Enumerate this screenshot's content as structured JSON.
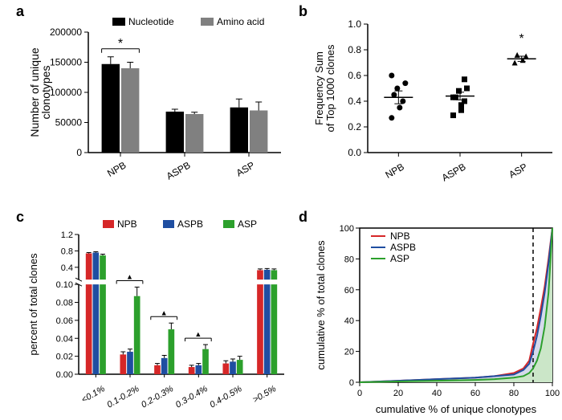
{
  "panel_labels": {
    "a": "a",
    "b": "b",
    "c": "c",
    "d": "d"
  },
  "panel_a": {
    "type": "bar",
    "categories": [
      "NPB",
      "ASPB",
      "ASP"
    ],
    "series": [
      {
        "name": "Nucleotide",
        "color": "#000000",
        "values": [
          147000,
          68000,
          75000
        ],
        "errors": [
          12000,
          4000,
          14000
        ]
      },
      {
        "name": "Amino acid",
        "color": "#808080",
        "values": [
          140000,
          64000,
          70000
        ],
        "errors": [
          10000,
          3000,
          14000
        ]
      }
    ],
    "y": {
      "label": "Number of unique\nclonotypes",
      "lim": [
        0,
        200000
      ],
      "step": 50000
    },
    "sig": {
      "label": "*",
      "group": 0
    },
    "legend_labels": [
      "Nucleotide",
      "Amino acid"
    ],
    "axis_color": "#000000",
    "tick_color": "#000000",
    "font_size_axis": 12,
    "bar_gap": 0.05
  },
  "panel_b": {
    "type": "scatter",
    "categories": [
      "NPB",
      "ASPB",
      "ASP"
    ],
    "y": {
      "label": "Frequency Sum\nof Top 1000 clones",
      "lim": [
        0,
        1.0
      ],
      "step": 0.2
    },
    "means": [
      0.43,
      0.44,
      0.73
    ],
    "sem": [
      0.05,
      0.03,
      0.02
    ],
    "points": {
      "NPB": [
        0.27,
        0.35,
        0.4,
        0.45,
        0.5,
        0.54,
        0.6
      ],
      "ASPB": [
        0.29,
        0.33,
        0.4,
        0.43,
        0.48,
        0.5,
        0.43,
        0.37,
        0.57
      ],
      "ASP": [
        0.7,
        0.72,
        0.75,
        0.76
      ]
    },
    "markers": {
      "NPB": "circle",
      "ASPB": "square",
      "ASP": "triangle"
    },
    "marker_color": "#000000",
    "sig": {
      "label": "*",
      "group": 2
    },
    "axis_color": "#000000",
    "font_size_axis": 12
  },
  "panel_c": {
    "type": "bar_broken_axis",
    "categories_x": [
      "<0.1%",
      "0.1-0.2%",
      "0.2-0.3%",
      "0.3-0.4%",
      "0.4-0.5%",
      ">0.5%"
    ],
    "series": [
      {
        "name": "NPB",
        "color": "#d62728",
        "values": [
          0.74,
          0.022,
          0.01,
          0.008,
          0.012,
          0.33
        ],
        "errors": [
          0.02,
          0.003,
          0.002,
          0.002,
          0.003,
          0.03
        ]
      },
      {
        "name": "ASPB",
        "color": "#1f4ea1",
        "values": [
          0.76,
          0.025,
          0.018,
          0.01,
          0.014,
          0.34
        ],
        "errors": [
          0.02,
          0.003,
          0.003,
          0.002,
          0.003,
          0.03
        ]
      },
      {
        "name": "ASP",
        "color": "#2ca02c",
        "values": [
          0.69,
          0.087,
          0.05,
          0.028,
          0.016,
          0.33
        ],
        "errors": [
          0.03,
          0.01,
          0.007,
          0.005,
          0.004,
          0.03
        ]
      }
    ],
    "y_lower": {
      "lim": [
        0.0,
        0.1
      ],
      "step": 0.02
    },
    "y_upper": {
      "lim": [
        0.1,
        1.2
      ],
      "ticks": [
        0.4,
        0.8,
        1.2
      ]
    },
    "y_label": "percent of total clones",
    "sig_groups": [
      1,
      2,
      3
    ],
    "sig_marker": "▲",
    "legend_labels": [
      "NPB",
      "ASPB",
      "ASP"
    ],
    "axis_color": "#000000",
    "font_size_axis": 12
  },
  "panel_d": {
    "type": "cumulative_area",
    "x": {
      "label": "cumulative % of unique clonotypes",
      "lim": [
        0,
        100
      ],
      "step": 20
    },
    "y": {
      "label": "cumulative % of total clones",
      "lim": [
        0,
        100
      ],
      "step": 20
    },
    "vline": 90,
    "series": [
      {
        "name": "NPB",
        "line_color": "#d62728",
        "fill_color": "#f2d0cf",
        "points": [
          [
            0,
            0
          ],
          [
            20,
            1
          ],
          [
            40,
            2
          ],
          [
            60,
            3
          ],
          [
            70,
            4
          ],
          [
            80,
            6
          ],
          [
            85,
            9
          ],
          [
            88,
            14
          ],
          [
            90,
            25
          ],
          [
            92,
            35
          ],
          [
            94,
            48
          ],
          [
            96,
            62
          ],
          [
            98,
            80
          ],
          [
            100,
            100
          ]
        ]
      },
      {
        "name": "ASPB",
        "line_color": "#1f4ea1",
        "fill_color": "#cfd9ef",
        "points": [
          [
            0,
            0
          ],
          [
            20,
            1
          ],
          [
            40,
            2
          ],
          [
            60,
            3
          ],
          [
            70,
            4
          ],
          [
            80,
            5
          ],
          [
            85,
            8
          ],
          [
            88,
            12
          ],
          [
            90,
            20
          ],
          [
            92,
            30
          ],
          [
            94,
            43
          ],
          [
            96,
            58
          ],
          [
            98,
            77
          ],
          [
            100,
            100
          ]
        ]
      },
      {
        "name": "ASP",
        "line_color": "#2ca02c",
        "fill_color": "#c9e8c2",
        "points": [
          [
            0,
            0
          ],
          [
            20,
            0.5
          ],
          [
            40,
            1
          ],
          [
            60,
            1.5
          ],
          [
            70,
            2
          ],
          [
            80,
            3
          ],
          [
            85,
            4
          ],
          [
            88,
            6
          ],
          [
            90,
            9
          ],
          [
            92,
            14
          ],
          [
            94,
            22
          ],
          [
            96,
            36
          ],
          [
            98,
            58
          ],
          [
            100,
            100
          ]
        ]
      }
    ],
    "legend_labels": [
      "NPB",
      "ASPB",
      "ASP"
    ],
    "axis_color": "#000000",
    "font_size_axis": 12
  }
}
